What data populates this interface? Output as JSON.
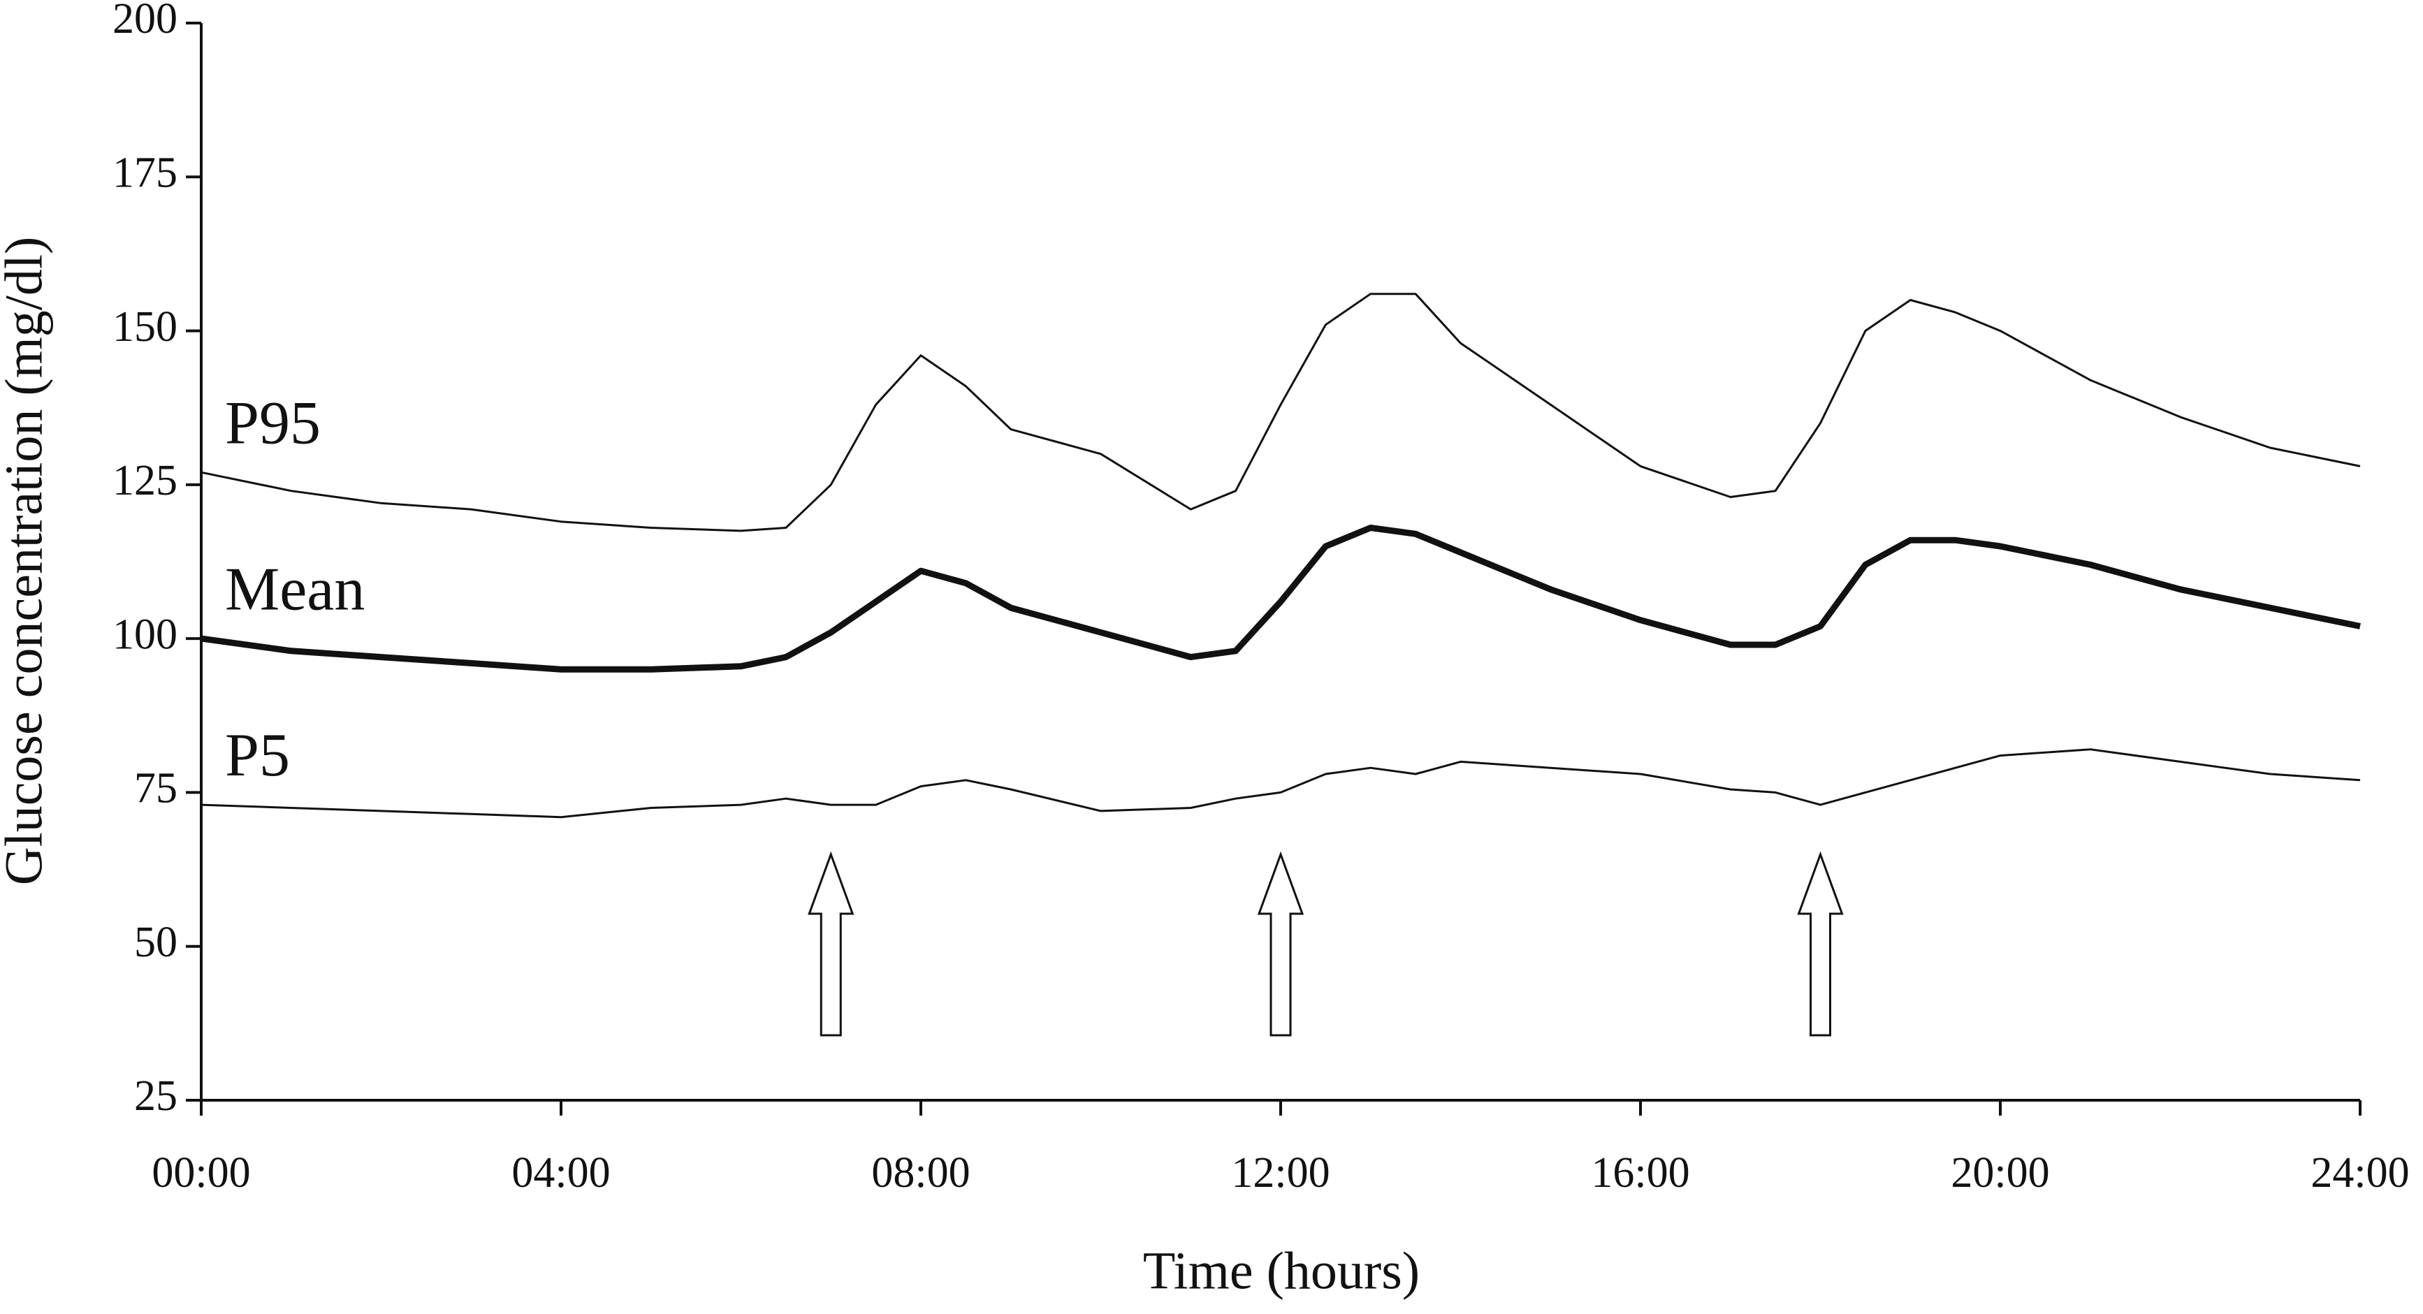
{
  "chart_data": {
    "type": "line",
    "xlabel": "Time (hours)",
    "ylabel": "Glucose concentration (mg/dl)",
    "x": [
      0,
      1,
      2,
      3,
      4,
      5,
      6,
      6.5,
      7,
      7.5,
      8,
      8.5,
      9,
      10,
      11,
      11.5,
      12,
      12.5,
      13,
      13.5,
      14,
      15,
      16,
      17,
      17.5,
      18,
      18.5,
      19,
      19.5,
      20,
      21,
      22,
      23,
      24
    ],
    "series": [
      {
        "name": "P95",
        "color": "#111111",
        "line_width": 3,
        "values": [
          127,
          124,
          122,
          121,
          119,
          118,
          117.5,
          118,
          125,
          138,
          146,
          141,
          134,
          130,
          121,
          124,
          138,
          151,
          156,
          156,
          148,
          138,
          128,
          123,
          124,
          135,
          150,
          155,
          153,
          150,
          142,
          136,
          131,
          128
        ]
      },
      {
        "name": "Mean",
        "color": "#111111",
        "line_width": 9,
        "values": [
          100,
          98,
          97,
          96,
          95,
          95,
          95.5,
          97,
          101,
          106,
          111,
          109,
          105,
          101,
          97,
          98,
          106,
          115,
          118,
          117,
          114,
          108,
          103,
          99,
          99,
          102,
          112,
          116,
          116,
          115,
          112,
          108,
          105,
          102
        ]
      },
      {
        "name": "P5",
        "color": "#111111",
        "line_width": 3,
        "values": [
          73,
          72.5,
          72,
          71.5,
          71,
          72.5,
          73,
          74,
          73,
          73,
          76,
          77,
          75.5,
          72,
          72.5,
          74,
          75,
          78,
          79,
          78,
          80,
          79,
          78,
          75.5,
          75,
          73,
          75,
          77,
          79,
          81,
          82,
          80,
          78,
          77
        ]
      }
    ],
    "arrows": [
      7,
      12,
      18
    ],
    "xlim": [
      0,
      24
    ],
    "xticks": [
      {
        "value": 0,
        "label": "00:00"
      },
      {
        "value": 4,
        "label": "04:00"
      },
      {
        "value": 8,
        "label": "08:00"
      },
      {
        "value": 12,
        "label": "12:00"
      },
      {
        "value": 16,
        "label": "16:00"
      },
      {
        "value": 20,
        "label": "20:00"
      },
      {
        "value": 24,
        "label": "24:00"
      }
    ],
    "ylim": [
      25,
      200
    ],
    "yticks": [
      25,
      50,
      75,
      100,
      125,
      150,
      175,
      200
    ],
    "grid": false
  }
}
